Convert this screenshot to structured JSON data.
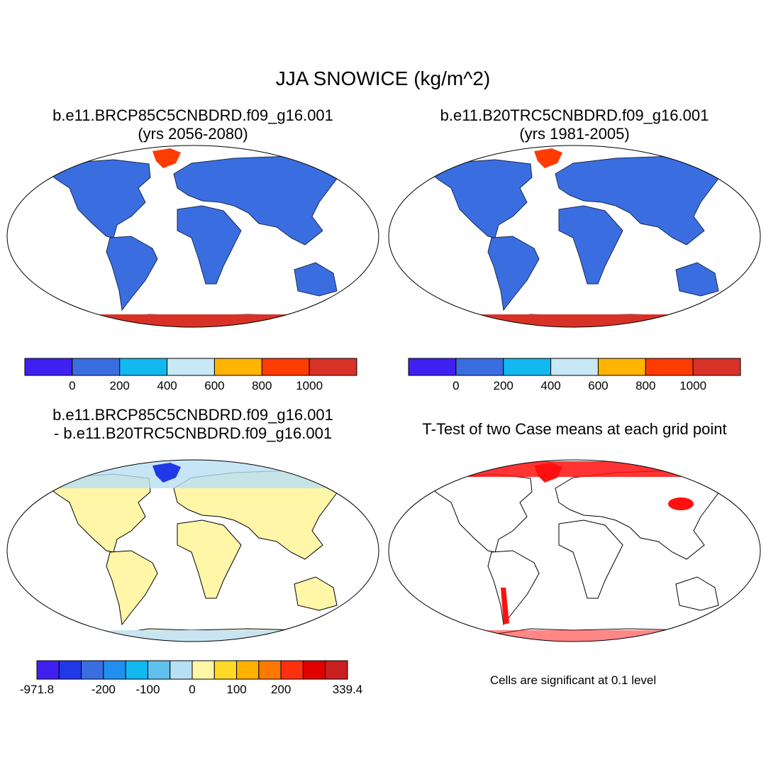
{
  "title": "JJA SNOWICE (kg/m^2)",
  "panels": [
    {
      "title": [
        "b.e11.BRCP85C5CNBDRD.f09_g16.001",
        "(yrs 2056-2080)"
      ],
      "colorbar": {
        "colors": [
          "#4020f0",
          "#3a6ee0",
          "#12b8f0",
          "#c8e8f6",
          "#ffb400",
          "#ff3c00",
          "#d83228"
        ],
        "labels": [
          0,
          200,
          400,
          600,
          800,
          1000
        ]
      }
    },
    {
      "title": [
        "b.e11.B20TRC5CNBDRD.f09_g16.001",
        "(yrs 1981-2005)"
      ],
      "colorbar": {
        "colors": [
          "#4020f0",
          "#3a6ee0",
          "#12b8f0",
          "#c8e8f6",
          "#ffb400",
          "#ff3c00",
          "#d83228"
        ],
        "labels": [
          0,
          200,
          400,
          600,
          800,
          1000
        ]
      }
    },
    {
      "title": [
        "b.e11.BRCP85C5CNBDRD.f09_g16.001",
        "- b.e11.B20TRC5CNBDRD.f09_g16.001"
      ],
      "colorbar": {
        "colors": [
          "#4020f0",
          "#2038e8",
          "#3a6ee0",
          "#2090f0",
          "#12b8f0",
          "#60c0ee",
          "#b8e0f4",
          "#fff6a8",
          "#ffd828",
          "#ffb000",
          "#ff7800",
          "#ff3010",
          "#e00000",
          "#c82020"
        ],
        "labels": [
          -971.8,
          -200,
          -100,
          0,
          100,
          200,
          339.4
        ]
      }
    },
    {
      "title": [
        "T-Test of two Case means at each grid point"
      ]
    }
  ],
  "note": "Cells are significant at 0.1 level"
}
